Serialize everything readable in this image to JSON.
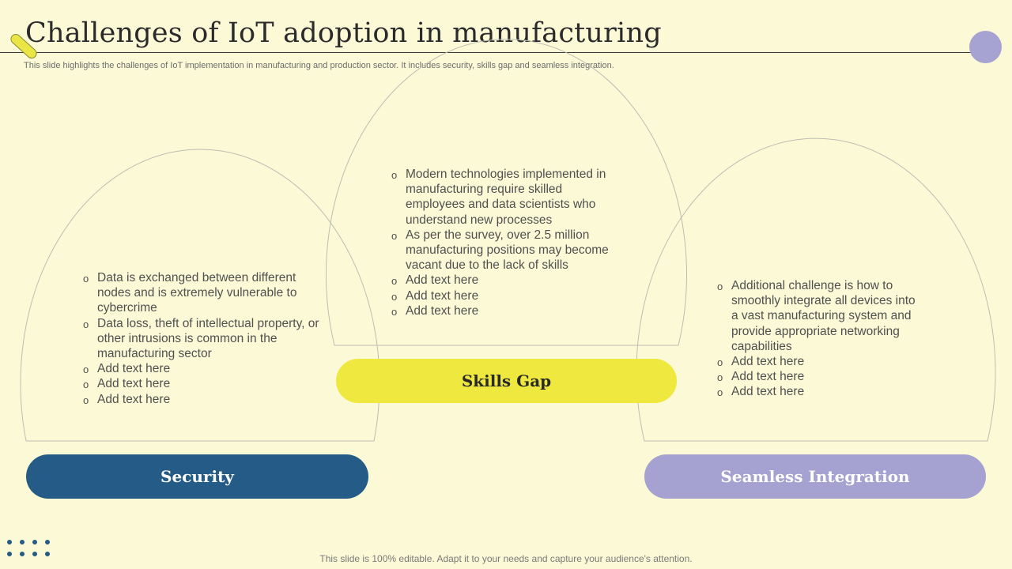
{
  "header": {
    "title": "Challenges of IoT adoption in manufacturing",
    "subtitle": "This slide highlights the challenges of IoT implementation in manufacturing and production sector. It includes security, skills gap and seamless integration."
  },
  "sections": {
    "security": {
      "label": "Security",
      "color": "#255c87",
      "bullets": [
        "Data is exchanged between different nodes and is extremely vulnerable to cybercrime",
        "Data loss, theft of intellectual property, or other intrusions is common in the manufacturing sector",
        "Add text here",
        "Add text here",
        "Add text here"
      ]
    },
    "skills_gap": {
      "label": "Skills Gap",
      "color": "#eee83f",
      "bullets": [
        "Modern technologies implemented in manufacturing require skilled employees and data scientists who understand new processes",
        "As per the survey, over 2.5 million manufacturing positions may become vacant due to the lack of skills",
        "Add text here",
        "Add text here",
        "Add text here"
      ]
    },
    "seamless_integration": {
      "label": "Seamless Integration",
      "color": "#a5a1d1",
      "bullets": [
        "Additional challenge is how to smoothly integrate all devices into a vast manufacturing system and provide appropriate networking capabilities",
        "Add text here",
        "Add text here",
        "Add text here"
      ]
    }
  },
  "footer": {
    "note": "This slide is 100% editable. Adapt it to your needs and capture your audience's attention."
  }
}
